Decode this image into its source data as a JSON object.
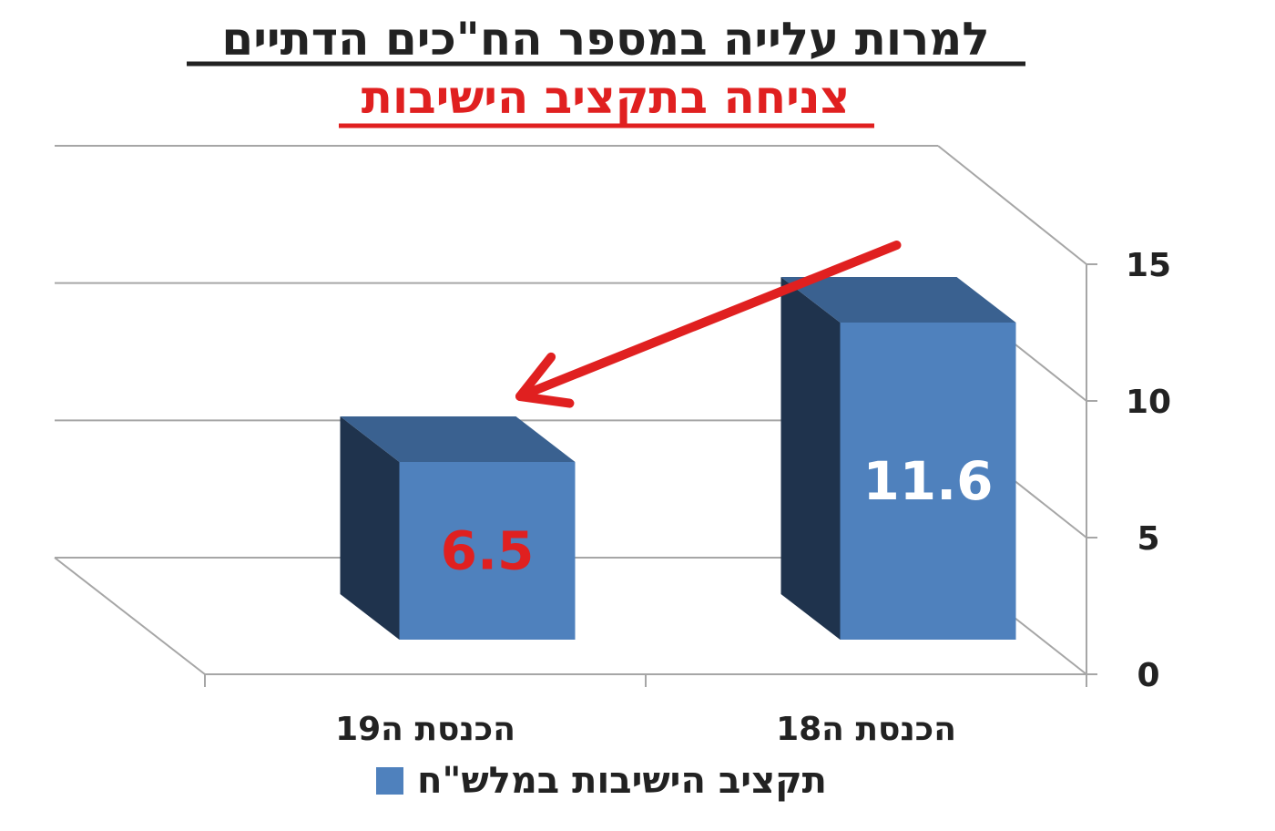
{
  "title": "למרות עלייה במספר הח\"כים הדתיים",
  "subtitle": "צניחה בתקציב הישיבות",
  "colors": {
    "title": "#222222",
    "subtitle": "#e02020",
    "bar_front": "#4f81bd",
    "bar_top": "#3a6190",
    "bar_side": "#1f334d",
    "grid": "#a6a6a6",
    "arrow": "#e02020",
    "label_highlight": "#e02020",
    "label_default": "#ffffff"
  },
  "chart_data": {
    "type": "bar",
    "style": "3d-clustered-column",
    "direction": "rtl",
    "categories": [
      "הכנסת ה18",
      "הכנסת ה19"
    ],
    "series": [
      {
        "name": "תקציב הישיבות במלש\"ח",
        "values": [
          11.6,
          6.5
        ]
      }
    ],
    "data_labels": [
      "11.6",
      "6.5"
    ],
    "ylim": [
      0,
      15
    ],
    "yticks": [
      "0",
      "5",
      "10",
      "15"
    ],
    "y_axis_side": "right",
    "grid": true,
    "legend": "bottom",
    "annotation": "red arrow pointing down from the 18th Knesset bar to the 19th Knesset bar"
  }
}
